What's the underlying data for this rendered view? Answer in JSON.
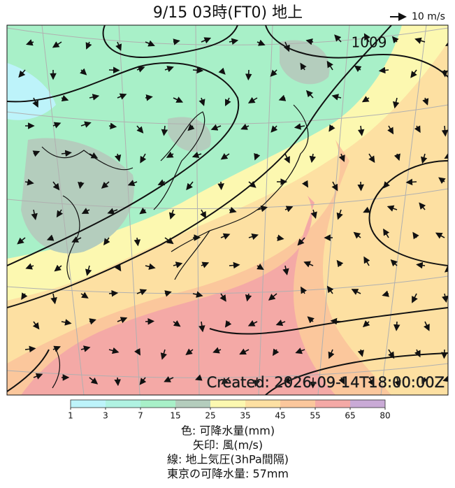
{
  "header": {
    "title": "9/15  03時(FT0)     地上",
    "wind_scale": "10 m/s"
  },
  "map": {
    "contour_label": "1009",
    "created": "Created: 2026-09-14T18:00:00Z"
  },
  "colorbar": {
    "ticks": [
      1,
      3,
      7,
      15,
      25,
      35,
      45,
      55,
      65,
      80
    ],
    "colors": [
      "#bdf3fa",
      "#b0f2e2",
      "#a8f0c8",
      "#b4cdbd",
      "#fcf8b0",
      "#fde0a2",
      "#fbc79c",
      "#f4a9a6",
      "#c9aad6"
    ]
  },
  "legend": {
    "lines": [
      "色: 可降水量(mm)",
      "矢印: 風(m/s)",
      "線: 地上気圧(3hPa間隔)",
      "東京の可降水量: 57mm"
    ]
  }
}
